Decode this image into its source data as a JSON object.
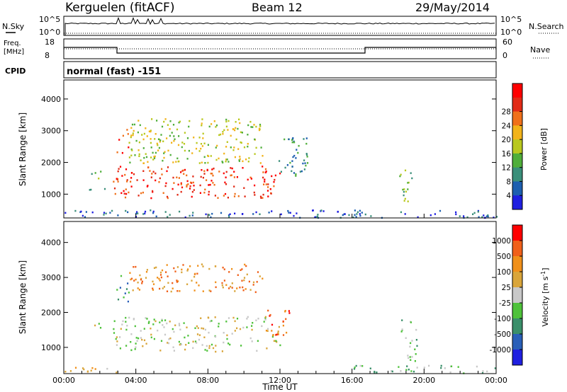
{
  "header": {
    "station": "Kerguelen (fitACF)",
    "beam": "Beam 12",
    "date": "29/May/2014"
  },
  "sky_panel": {
    "left_label": "N.Sky",
    "right_label": "N.Search",
    "ticks_left": [
      "10^5",
      "10^0"
    ],
    "ticks_right": [
      "10^5",
      "10^0"
    ]
  },
  "freq_panel": {
    "left_label_1": "Freq.",
    "left_label_2": "[MHz]",
    "right_label": "Nave",
    "ticks_left": [
      "18",
      "8"
    ],
    "ticks_right": [
      "60",
      "0"
    ]
  },
  "cpid": {
    "label": "CPID",
    "mode": "normal (fast) -151"
  },
  "chart_data": [
    {
      "type": "heatmap",
      "ylabel": "Slant Range [km]",
      "yticks": [
        "1000",
        "2000",
        "3000",
        "4000"
      ],
      "ylim": [
        250,
        4600
      ],
      "xlim_hours": [
        0,
        24
      ],
      "colorbar": {
        "label": "Power [dB]",
        "ticks": [
          "4",
          "8",
          "12",
          "16",
          "20",
          "24",
          "28"
        ],
        "colors": [
          "#1f1fe0",
          "#1d5fb0",
          "#3a8f7a",
          "#4fae3a",
          "#b9c81e",
          "#f2b31a",
          "#f0701a",
          "#e22a16",
          "#ff0000"
        ]
      },
      "regions": [
        {
          "t": [
            1.5,
            2.2
          ],
          "r": [
            1500,
            1750
          ],
          "level": 3
        },
        {
          "t": [
            1.2,
            2.5
          ],
          "r": [
            1150,
            1300
          ],
          "level": 3
        },
        {
          "t": [
            2.7,
            12.0
          ],
          "r": [
            900,
            1900
          ],
          "level": 7
        },
        {
          "t": [
            2.9,
            3.6
          ],
          "r": [
            2300,
            3100
          ],
          "level": 7
        },
        {
          "t": [
            3.6,
            11.0
          ],
          "r": [
            2000,
            3400
          ],
          "level": 4
        },
        {
          "t": [
            11.8,
            13.5
          ],
          "r": [
            1600,
            2800
          ],
          "level": 2
        },
        {
          "t": [
            18.6,
            19.3
          ],
          "r": [
            700,
            1800
          ],
          "level": 3
        },
        {
          "t": [
            0,
            24
          ],
          "r": [
            280,
            520
          ],
          "level": 1
        }
      ]
    },
    {
      "type": "heatmap",
      "ylabel": "Slant Range [km]",
      "yticks": [
        "1000",
        "2000",
        "3000",
        "4000"
      ],
      "ylim": [
        250,
        4600
      ],
      "xlabel": "Time UT",
      "xticks": [
        "00:00",
        "04:00",
        "08:00",
        "12:00",
        "16:00",
        "20:00",
        "00:00"
      ],
      "xlim_hours": [
        0,
        24
      ],
      "colorbar": {
        "label": "Velocity [m s",
        "label_sup": "-1",
        "ticks": [
          "1000",
          "500",
          "100",
          "25",
          "-25",
          "-100",
          "-500",
          "-1000"
        ],
        "colors": [
          "#1f1fe0",
          "#2a5fb8",
          "#3a8f6a",
          "#4ec23a",
          "#c8c8c8",
          "#d9a53a",
          "#f0901a",
          "#f0601a",
          "#ff0000"
        ]
      },
      "regions": [
        {
          "t": [
            1.5,
            2.2
          ],
          "r": [
            1500,
            1750
          ],
          "level": 4
        },
        {
          "t": [
            2.7,
            12.0
          ],
          "r": [
            900,
            1900
          ],
          "level": 4
        },
        {
          "t": [
            2.9,
            3.6
          ],
          "r": [
            2300,
            3100
          ],
          "level": 2
        },
        {
          "t": [
            3.6,
            11.0
          ],
          "r": [
            2600,
            3400
          ],
          "level": 6
        },
        {
          "t": [
            11.2,
            12.5
          ],
          "r": [
            1300,
            2100
          ],
          "level": 7
        },
        {
          "t": [
            18.7,
            19.6
          ],
          "r": [
            600,
            1800
          ],
          "level": 3
        },
        {
          "t": [
            0,
            3.0
          ],
          "r": [
            280,
            500
          ],
          "level": 5
        },
        {
          "t": [
            16,
            24
          ],
          "r": [
            280,
            500
          ],
          "level": 3
        }
      ]
    }
  ]
}
